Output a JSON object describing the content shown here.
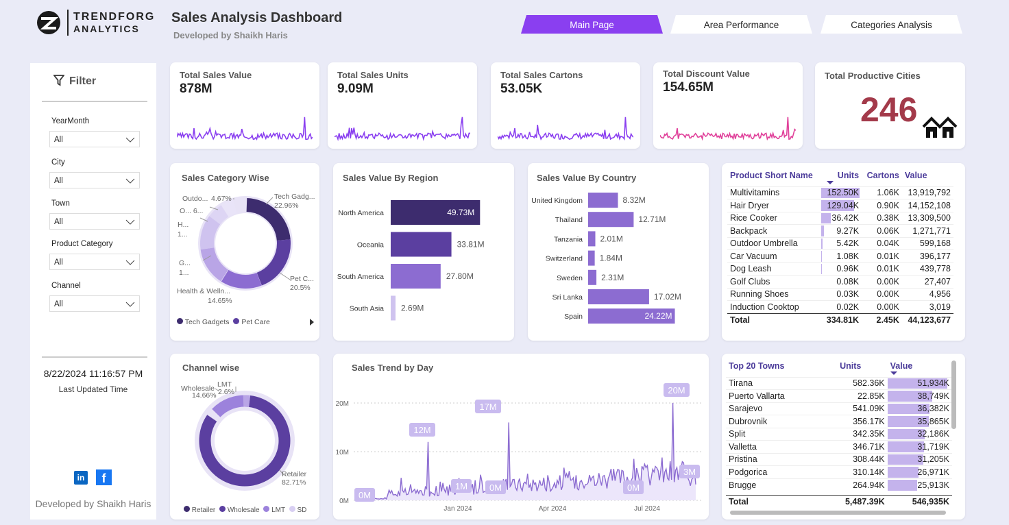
{
  "header": {
    "logo_line1": "TRENDFORG",
    "logo_line2": "ANALYTICS",
    "title": "Sales Analysis Dashboard",
    "subtitle": "Developed by Shaikh Haris"
  },
  "tabs": [
    {
      "label": "Main Page",
      "active": true
    },
    {
      "label": "Area Performance",
      "active": false
    },
    {
      "label": "Categories Analysis",
      "active": false
    }
  ],
  "filter": {
    "title": "Filter",
    "fields": [
      {
        "label": "YearMonth",
        "value": "All"
      },
      {
        "label": "City",
        "value": "All"
      },
      {
        "label": "Town",
        "value": "All"
      },
      {
        "label": "Product Category",
        "value": "All"
      },
      {
        "label": "Channel",
        "value": "All"
      }
    ],
    "timestamp": "8/22/2024 11:16:57 PM",
    "timestamp_label": "Last Updated Time",
    "footer": "Developed by Shaikh Haris"
  },
  "kpis": [
    {
      "label": "Total Sales Value",
      "value": "878M",
      "color": "#8a3ff0"
    },
    {
      "label": "Total Sales Units",
      "value": "9.09M",
      "color": "#8a3ff0"
    },
    {
      "label": "Total Sales Cartons",
      "value": "53.05K",
      "color": "#8a3ff0"
    },
    {
      "label": "Total Discount Value",
      "value": "154.65M",
      "color": "#e0409a"
    }
  ],
  "cities": {
    "label": "Total Productive Cities",
    "value": "246",
    "color": "#a33a4a"
  },
  "category_chart": {
    "title": "Sales Category Wise",
    "labels": [
      {
        "name": "Tech Gadg...",
        "pct": "22.96%"
      },
      {
        "name": "Pet C...",
        "pct": "20.5%"
      },
      {
        "name": "Health & Welln...",
        "pct": "14.65%"
      },
      {
        "name": "G...",
        "pct": "1..."
      },
      {
        "name": "H...",
        "pct": "1..."
      },
      {
        "name": "O... 6...",
        "pct": ""
      },
      {
        "name": "Outdo...",
        "pct": "4.67%"
      }
    ],
    "legend": [
      "Tech Gadgets",
      "Pet Care"
    ]
  },
  "channel_chart": {
    "title": "Channel wise",
    "labels": [
      {
        "name": "Wholesale",
        "pct": "14.66%"
      },
      {
        "name": "LMT",
        "pct": "2.6%"
      },
      {
        "name": "Retailer",
        "pct": "82.71%"
      }
    ],
    "legend": [
      "Retailer",
      "Wholesale",
      "LMT",
      "SD"
    ]
  },
  "region_chart": {
    "title": "Sales Value By Region",
    "rows": [
      {
        "name": "North America",
        "label": "49.73M",
        "value": 49.73
      },
      {
        "name": "Oceania",
        "label": "33.81M",
        "value": 33.81
      },
      {
        "name": "South America",
        "label": "27.80M",
        "value": 27.8
      },
      {
        "name": "South Asia",
        "label": "2.69M",
        "value": 2.69
      }
    ]
  },
  "country_chart": {
    "title": "Sales Value By Country",
    "rows": [
      {
        "name": "United Kingdom",
        "label": "8.32M",
        "value": 8.32
      },
      {
        "name": "Thailand",
        "label": "12.71M",
        "value": 12.71
      },
      {
        "name": "Tanzania",
        "label": "2.01M",
        "value": 2.01
      },
      {
        "name": "Switzerland",
        "label": "1.84M",
        "value": 1.84
      },
      {
        "name": "Sweden",
        "label": "2.31M",
        "value": 2.31
      },
      {
        "name": "Sri Lanka",
        "label": "17.02M",
        "value": 17.02
      },
      {
        "name": "Spain",
        "label": "24.22M",
        "value": 24.22
      }
    ]
  },
  "product_table": {
    "headers": [
      "Product Short Name",
      "Units",
      "Cartons",
      "Value"
    ],
    "rows": [
      {
        "name": "Multivitamins",
        "units": "152.50K",
        "cartons": "1.06K",
        "value": "13,919,792",
        "u": 152.5
      },
      {
        "name": "Hair Dryer",
        "units": "129.04K",
        "cartons": "0.90K",
        "value": "14,152,108",
        "u": 129.04
      },
      {
        "name": "Rice Cooker",
        "units": "36.42K",
        "cartons": "0.38K",
        "value": "13,309,500",
        "u": 36.42
      },
      {
        "name": "Backpack",
        "units": "9.27K",
        "cartons": "0.06K",
        "value": "1,271,771",
        "u": 9.27
      },
      {
        "name": "Outdoor Umbrella",
        "units": "5.42K",
        "cartons": "0.04K",
        "value": "599,168",
        "u": 5.42
      },
      {
        "name": "Car Vacuum",
        "units": "1.08K",
        "cartons": "0.01K",
        "value": "396,177",
        "u": 1.08
      },
      {
        "name": "Dog Leash",
        "units": "0.96K",
        "cartons": "0.01K",
        "value": "439,778",
        "u": 0.96
      },
      {
        "name": "Golf Clubs",
        "units": "0.08K",
        "cartons": "0.00K",
        "value": "27,407",
        "u": 0.08
      },
      {
        "name": "Running Shoes",
        "units": "0.03K",
        "cartons": "0.00K",
        "value": "4,956",
        "u": 0.03
      },
      {
        "name": "Induction Cooktop",
        "units": "0.02K",
        "cartons": "0.00K",
        "value": "3,019",
        "u": 0.02
      }
    ],
    "total": {
      "name": "Total",
      "units": "334.81K",
      "cartons": "2.45K",
      "value": "44,123,677"
    }
  },
  "towns_table": {
    "headers": [
      "Top 20 Towns",
      "Units",
      "Value"
    ],
    "rows": [
      {
        "name": "Tirana",
        "units": "582.36K",
        "value": "51,934K",
        "v": 51934
      },
      {
        "name": "Puerto Vallarta",
        "units": "22.85K",
        "value": "38,749K",
        "v": 38749
      },
      {
        "name": "Sarajevo",
        "units": "541.09K",
        "value": "36,382K",
        "v": 36382
      },
      {
        "name": "Dubrovnik",
        "units": "356.17K",
        "value": "35,865K",
        "v": 35865
      },
      {
        "name": "Split",
        "units": "342.35K",
        "value": "32,186K",
        "v": 32186
      },
      {
        "name": "Valletta",
        "units": "346.71K",
        "value": "31,719K",
        "v": 31719
      },
      {
        "name": "Pristina",
        "units": "308.44K",
        "value": "31,205K",
        "v": 31205
      },
      {
        "name": "Podgorica",
        "units": "310.14K",
        "value": "26,971K",
        "v": 26971
      },
      {
        "name": "Brugge",
        "units": "264.94K",
        "value": "25,913K",
        "v": 25913
      }
    ],
    "total": {
      "name": "Total",
      "units": "5,487.39K",
      "value": "546,935K"
    }
  },
  "trend_chart": {
    "title": "Sales Trend by Day",
    "y_ticks": [
      "20M",
      "10M",
      "0M"
    ],
    "x_ticks": [
      "Jan 2024",
      "Apr 2024",
      "Jul 2024"
    ],
    "callouts": [
      "12M",
      "17M",
      "20M",
      "1M",
      "0M",
      "0M",
      "0M",
      "3M"
    ]
  },
  "chart_data": {
    "type": "line",
    "title": "Sales Trend by Day",
    "x_ticks": [
      "Jan 2024",
      "Apr 2024",
      "Jul 2024"
    ],
    "y_ticks": [
      "0M",
      "10M",
      "20M"
    ],
    "ylim": [
      0,
      22
    ],
    "peaks": [
      {
        "label": "12M",
        "value": 12
      },
      {
        "label": "17M",
        "value": 17
      },
      {
        "label": "20M",
        "value": 20
      },
      {
        "label": "3M",
        "value": 3
      }
    ]
  }
}
